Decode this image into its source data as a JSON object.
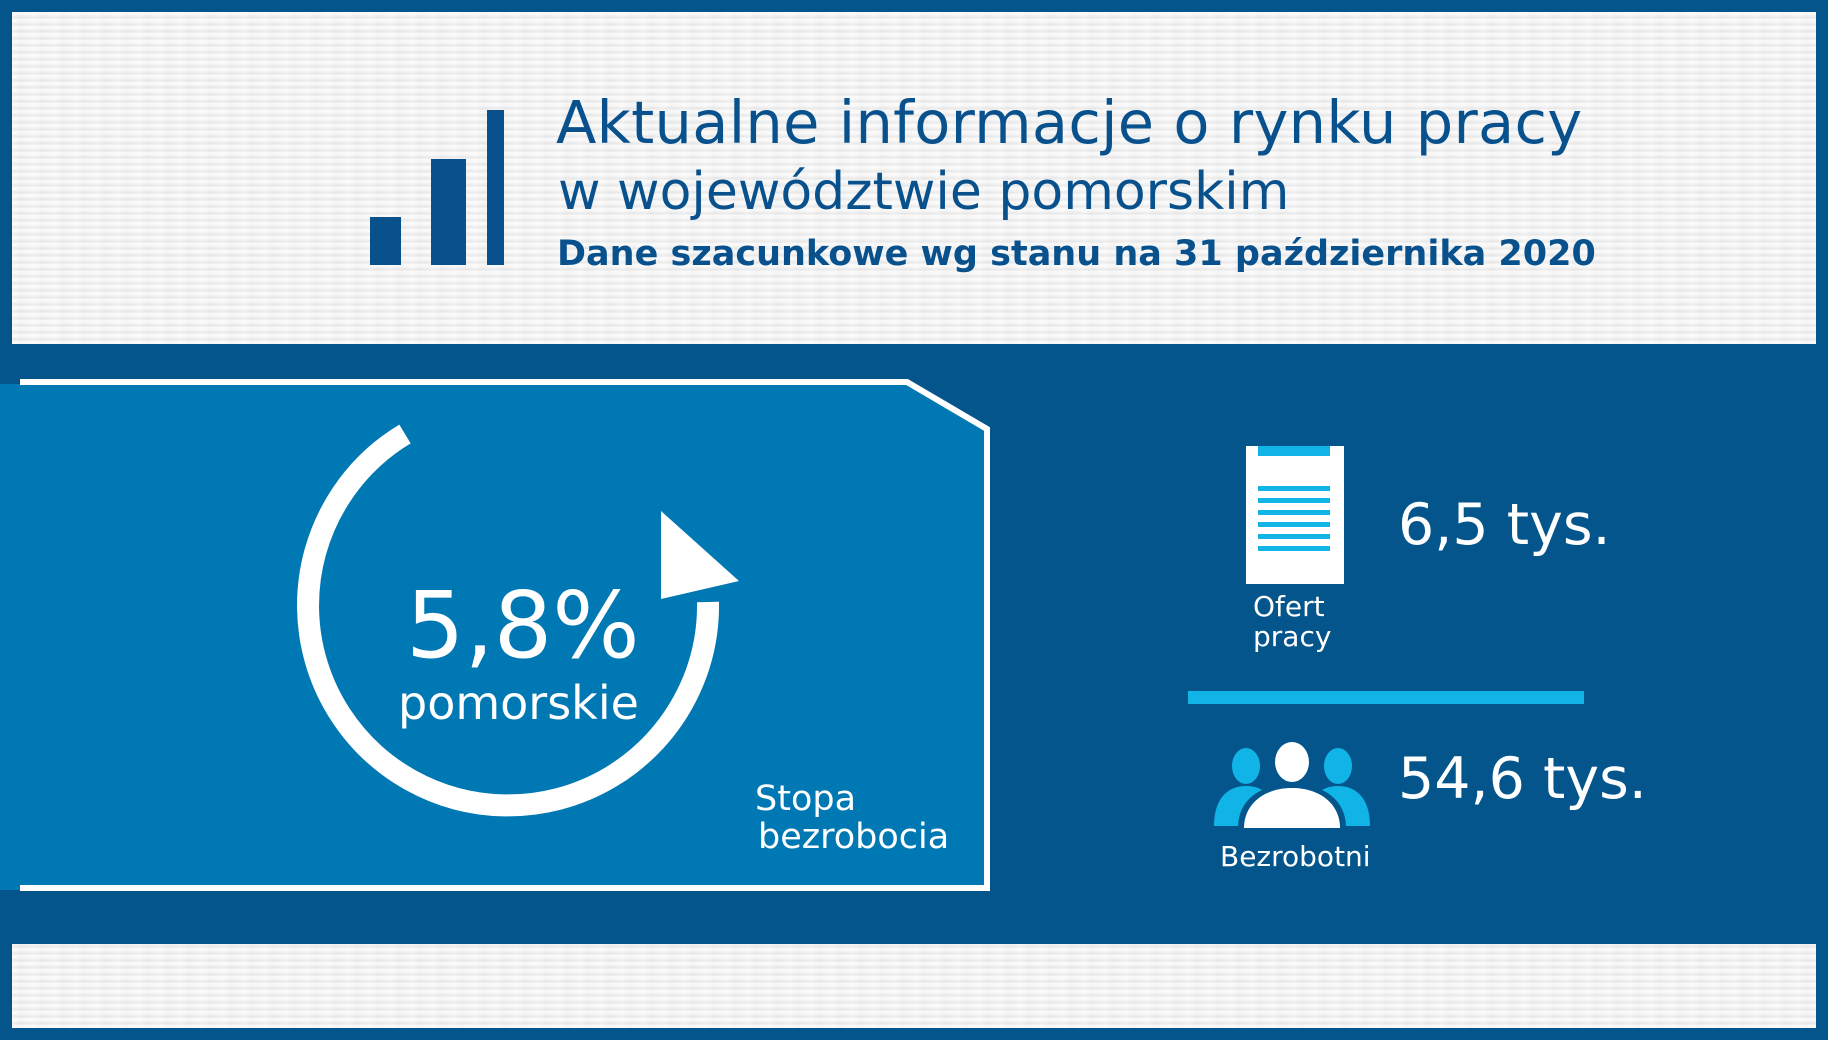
{
  "header": {
    "title_line1": "Aktualne informacje o rynku pracy",
    "title_line2": "w województwie pomorskim",
    "subtitle": "Dane szacunkowe wg stanu na 31 października 2020"
  },
  "unemployment_rate": {
    "value": "5,8%",
    "region": "pomorskie",
    "caption_line1": "Stopa",
    "caption_line2": "bezrobocia"
  },
  "job_offers": {
    "value": "6,5 tys.",
    "caption_line1": "Ofert",
    "caption_line2": "pracy",
    "icon": "document-icon"
  },
  "unemployed": {
    "value": "54,6 tys.",
    "caption": "Bezrobotni",
    "icon": "people-icon"
  },
  "colors": {
    "background": "#03558c",
    "title_blue": "#08518d",
    "panel_blue": "#0078b3",
    "accent_cyan": "#10b4e6",
    "white": "#ffffff"
  }
}
